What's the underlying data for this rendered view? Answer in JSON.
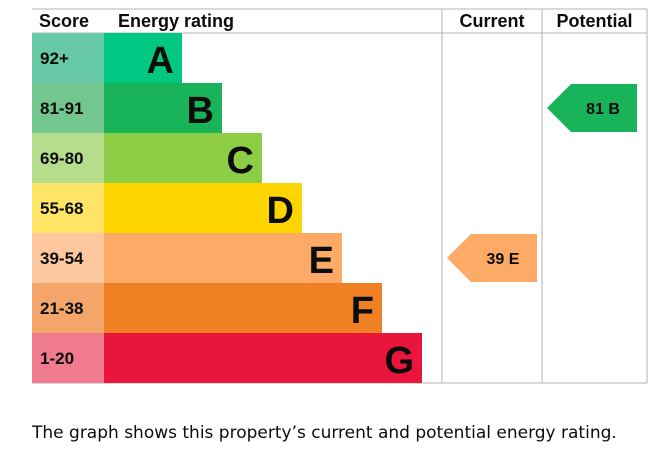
{
  "chart_data": {
    "type": "bar",
    "headers": {
      "score": "Score",
      "rating": "Energy rating",
      "current": "Current",
      "potential": "Potential"
    },
    "bands": [
      {
        "score": "92+",
        "letter": "A",
        "color": "#00c781",
        "score_bg": "#67c9a6"
      },
      {
        "score": "81-91",
        "letter": "B",
        "color": "#19b459",
        "score_bg": "#72c68e"
      },
      {
        "score": "69-80",
        "letter": "C",
        "color": "#8dce46",
        "score_bg": "#b6dd8b"
      },
      {
        "score": "55-68",
        "letter": "D",
        "color": "#ffd500",
        "score_bg": "#ffe566"
      },
      {
        "score": "39-54",
        "letter": "E",
        "color": "#fcaa65",
        "score_bg": "#fdc89e"
      },
      {
        "score": "21-38",
        "letter": "F",
        "color": "#ef8023",
        "score_bg": "#f3a56a"
      },
      {
        "score": "1-20",
        "letter": "G",
        "color": "#e9153b",
        "score_bg": "#f07a8e"
      }
    ],
    "current": {
      "value": 39,
      "letter": "E",
      "label": "39  E",
      "color": "#fcaa65"
    },
    "potential": {
      "value": 81,
      "letter": "B",
      "label": "81  B",
      "color": "#19b459"
    }
  },
  "caption": "The graph shows this property’s current and potential energy rating."
}
